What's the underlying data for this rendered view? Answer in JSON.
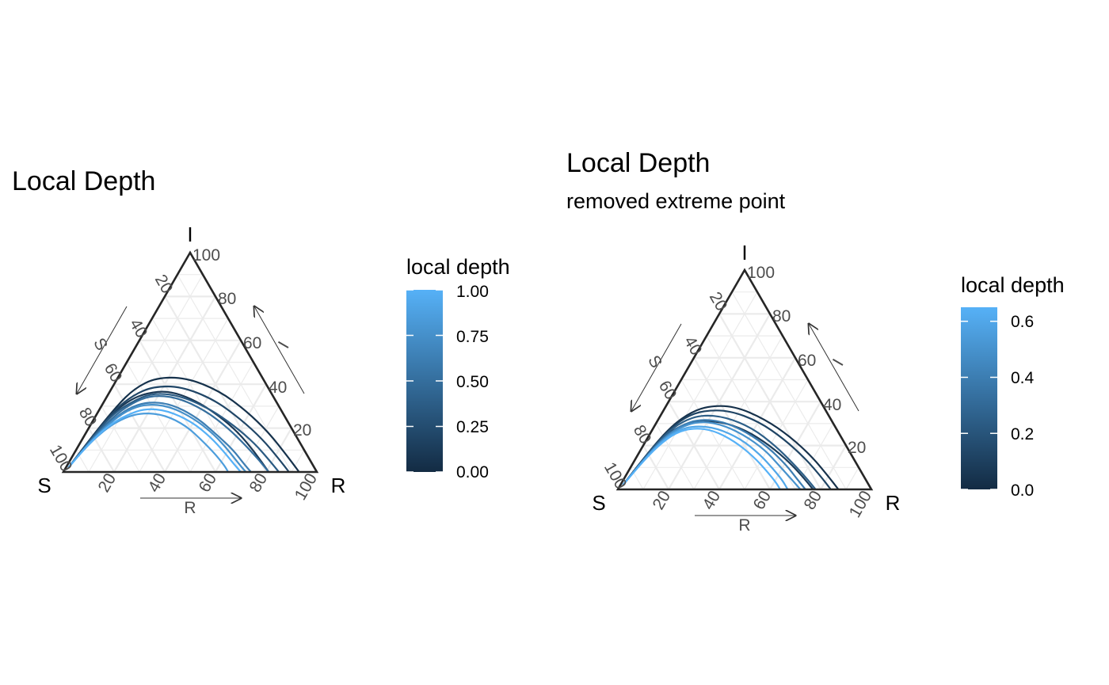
{
  "chart_data": [
    {
      "type": "ternary-line",
      "title": "Local Depth",
      "subtitle": "",
      "vertices": {
        "top": "I",
        "left": "S",
        "right": "R"
      },
      "axes": {
        "S": {
          "label": "S",
          "ticks": [
            "20",
            "40",
            "60",
            "80",
            "100"
          ]
        },
        "I": {
          "label": "I",
          "ticks": [
            "20",
            "40",
            "60",
            "80",
            "100"
          ]
        },
        "R": {
          "label": "R",
          "ticks": [
            "20",
            "40",
            "60",
            "80",
            "100"
          ]
        }
      },
      "grid": true,
      "legend": {
        "title": "local depth",
        "placement": "right",
        "range": [
          0,
          1
        ],
        "ticks": [
          "0.00",
          "0.25",
          "0.50",
          "0.75",
          "1.00"
        ],
        "tick_values": [
          0,
          0.25,
          0.5,
          0.75,
          1.0
        ]
      },
      "color_low": "#132B43",
      "color_high": "#56B1F7",
      "series": [
        {
          "depth": 0.05,
          "points": [
            [
              97,
              2,
              1
            ],
            [
              82,
              15,
              3
            ],
            [
              64,
              30,
              6
            ],
            [
              53,
              38,
              9
            ],
            [
              42,
              43,
              15
            ],
            [
              30,
              43,
              27
            ],
            [
              20,
              37,
              43
            ],
            [
              14,
              28,
              58
            ],
            [
              10,
              18,
              72
            ],
            [
              8,
              7,
              85
            ],
            [
              7,
              0,
              93
            ]
          ]
        },
        {
          "depth": 0.2,
          "points": [
            [
              97,
              2,
              1
            ],
            [
              83,
              14,
              3
            ],
            [
              66,
              28,
              6
            ],
            [
              55,
              35,
              10
            ],
            [
              45,
              39,
              16
            ],
            [
              34,
              39,
              27
            ],
            [
              24,
              33,
              43
            ],
            [
              18,
              24,
              58
            ],
            [
              14,
              15,
              71
            ],
            [
              12,
              6,
              82
            ],
            [
              11,
              0,
              89
            ]
          ]
        },
        {
          "depth": 0.35,
          "points": [
            [
              97,
              2,
              1
            ],
            [
              84,
              13,
              3
            ],
            [
              68,
              26,
              6
            ],
            [
              57,
              32,
              11
            ],
            [
              47,
              36,
              17
            ],
            [
              37,
              35,
              28
            ],
            [
              28,
              29,
              43
            ],
            [
              22,
              21,
              57
            ],
            [
              18,
              13,
              69
            ],
            [
              16,
              5,
              79
            ],
            [
              15,
              0,
              85
            ]
          ]
        },
        {
          "depth": 0.5,
          "points": [
            [
              97,
              2,
              1
            ],
            [
              84,
              13,
              3
            ],
            [
              68,
              25,
              7
            ],
            [
              58,
              31,
              11
            ],
            [
              48,
              35,
              17
            ],
            [
              38,
              34,
              28
            ],
            [
              30,
              28,
              42
            ],
            [
              25,
              20,
              55
            ],
            [
              22,
              12,
              66
            ],
            [
              20,
              5,
              75
            ],
            [
              19,
              0,
              81
            ]
          ]
        },
        {
          "depth": 0.62,
          "points": [
            [
              97,
              2,
              1
            ],
            [
              85,
              12,
              3
            ],
            [
              70,
              23,
              7
            ],
            [
              60,
              29,
              11
            ],
            [
              51,
              32,
              17
            ],
            [
              42,
              31,
              27
            ],
            [
              35,
              25,
              40
            ],
            [
              31,
              17,
              52
            ],
            [
              28,
              10,
              62
            ],
            [
              27,
              4,
              69
            ],
            [
              26,
              0,
              74
            ]
          ]
        },
        {
          "depth": 0.75,
          "points": [
            [
              97,
              2,
              1
            ],
            [
              85,
              12,
              3
            ],
            [
              71,
              22,
              7
            ],
            [
              61,
              28,
              11
            ],
            [
              52,
              31,
              17
            ],
            [
              43,
              30,
              27
            ],
            [
              36,
              24,
              40
            ],
            [
              32,
              17,
              51
            ],
            [
              30,
              10,
              60
            ],
            [
              29,
              4,
              67
            ],
            [
              28,
              0,
              72
            ]
          ]
        },
        {
          "depth": 0.85,
          "points": [
            [
              97,
              2,
              1
            ],
            [
              86,
              11,
              3
            ],
            [
              73,
              20,
              7
            ],
            [
              63,
              25,
              12
            ],
            [
              55,
              27,
              18
            ],
            [
              47,
              26,
              27
            ],
            [
              41,
              21,
              38
            ],
            [
              38,
              14,
              48
            ],
            [
              36,
              8,
              56
            ],
            [
              35,
              3,
              62
            ],
            [
              35,
              0,
              65
            ]
          ]
        },
        {
          "depth": 1.0,
          "points": [
            [
              97,
              2,
              1
            ],
            [
              86,
              11,
              3
            ],
            [
              72,
              21,
              7
            ],
            [
              62,
              26,
              12
            ],
            [
              53,
              29,
              18
            ],
            [
              45,
              28,
              27
            ],
            [
              38,
              23,
              39
            ],
            [
              34,
              16,
              50
            ],
            [
              32,
              9,
              59
            ],
            [
              31,
              4,
              65
            ],
            [
              30,
              0,
              70
            ]
          ]
        },
        {
          "depth": 0.1,
          "points": [
            [
              97,
              2,
              1
            ],
            [
              83,
              14,
              3
            ],
            [
              67,
              27,
              6
            ],
            [
              57,
              33,
              10
            ],
            [
              49,
              36,
              15
            ],
            [
              40,
              37,
              23
            ],
            [
              32,
              33,
              35
            ],
            [
              26,
              26,
              48
            ],
            [
              22,
              18,
              60
            ],
            [
              20,
              9,
              71
            ],
            [
              19,
              0,
              81
            ]
          ]
        }
      ]
    },
    {
      "type": "ternary-line",
      "title": "Local Depth",
      "subtitle": "removed extreme point",
      "vertices": {
        "top": "I",
        "left": "S",
        "right": "R"
      },
      "axes": {
        "S": {
          "label": "S",
          "ticks": [
            "20",
            "40",
            "60",
            "80",
            "100"
          ]
        },
        "I": {
          "label": "I",
          "ticks": [
            "20",
            "40",
            "60",
            "80",
            "100"
          ]
        },
        "R": {
          "label": "R",
          "ticks": [
            "20",
            "40",
            "60",
            "80",
            "100"
          ]
        }
      },
      "grid": true,
      "legend": {
        "title": "local depth",
        "placement": "right",
        "range": [
          0,
          0.65
        ],
        "ticks": [
          "0.0",
          "0.2",
          "0.4",
          "0.6"
        ],
        "tick_values": [
          0,
          0.2,
          0.4,
          0.6
        ]
      },
      "color_low": "#132B43",
      "color_high": "#56B1F7",
      "series": [
        {
          "depth": 0.03,
          "points": [
            [
              97,
              2,
              1
            ],
            [
              83,
              14,
              3
            ],
            [
              67,
              27,
              6
            ],
            [
              56,
              34,
              10
            ],
            [
              46,
              38,
              16
            ],
            [
              35,
              38,
              27
            ],
            [
              26,
              32,
              42
            ],
            [
              20,
              24,
              56
            ],
            [
              16,
              15,
              69
            ],
            [
              14,
              6,
              80
            ],
            [
              13,
              0,
              87
            ]
          ]
        },
        {
          "depth": 0.12,
          "points": [
            [
              97,
              2,
              1
            ],
            [
              83,
              14,
              3
            ],
            [
              68,
              26,
              6
            ],
            [
              57,
              33,
              10
            ],
            [
              48,
              36,
              16
            ],
            [
              38,
              36,
              26
            ],
            [
              29,
              31,
              40
            ],
            [
              23,
              23,
              54
            ],
            [
              19,
              14,
              67
            ],
            [
              17,
              6,
              77
            ],
            [
              16,
              0,
              84
            ]
          ]
        },
        {
          "depth": 0.25,
          "points": [
            [
              97,
              2,
              1
            ],
            [
              84,
              13,
              3
            ],
            [
              69,
              25,
              6
            ],
            [
              59,
              31,
              10
            ],
            [
              50,
              34,
              16
            ],
            [
              41,
              33,
              26
            ],
            [
              33,
              28,
              39
            ],
            [
              28,
              20,
              52
            ],
            [
              25,
              12,
              63
            ],
            [
              23,
              5,
              72
            ],
            [
              22,
              0,
              78
            ]
          ]
        },
        {
          "depth": 0.4,
          "points": [
            [
              97,
              2,
              1
            ],
            [
              85,
              12,
              3
            ],
            [
              71,
              23,
              6
            ],
            [
              61,
              29,
              10
            ],
            [
              52,
              32,
              16
            ],
            [
              43,
              31,
              26
            ],
            [
              36,
              26,
              38
            ],
            [
              31,
              19,
              50
            ],
            [
              28,
              11,
              61
            ],
            [
              27,
              5,
              68
            ],
            [
              26,
              0,
              74
            ]
          ]
        },
        {
          "depth": 0.5,
          "points": [
            [
              97,
              2,
              1
            ],
            [
              85,
              12,
              3
            ],
            [
              72,
              22,
              6
            ],
            [
              62,
              28,
              10
            ],
            [
              53,
              31,
              16
            ],
            [
              45,
              30,
              25
            ],
            [
              38,
              25,
              37
            ],
            [
              33,
              18,
              49
            ],
            [
              31,
              11,
              58
            ],
            [
              29,
              4,
              67
            ],
            [
              28,
              0,
              72
            ]
          ]
        },
        {
          "depth": 0.6,
          "points": [
            [
              97,
              2,
              1
            ],
            [
              86,
              11,
              3
            ],
            [
              73,
              21,
              6
            ],
            [
              63,
              27,
              10
            ],
            [
              55,
              29,
              16
            ],
            [
              47,
              28,
              25
            ],
            [
              40,
              23,
              37
            ],
            [
              36,
              16,
              48
            ],
            [
              34,
              9,
              57
            ],
            [
              33,
              4,
              63
            ],
            [
              33,
              0,
              67
            ]
          ]
        },
        {
          "depth": 0.65,
          "points": [
            [
              97,
              2,
              1
            ],
            [
              86,
              11,
              3
            ],
            [
              74,
              20,
              6
            ],
            [
              64,
              26,
              10
            ],
            [
              56,
              28,
              16
            ],
            [
              49,
              27,
              24
            ],
            [
              43,
              22,
              35
            ],
            [
              39,
              15,
              46
            ],
            [
              37,
              8,
              55
            ],
            [
              36,
              3,
              61
            ],
            [
              36,
              0,
              64
            ]
          ]
        },
        {
          "depth": 0.08,
          "points": [
            [
              97,
              2,
              1
            ],
            [
              84,
              13,
              3
            ],
            [
              70,
              24,
              6
            ],
            [
              61,
              29,
              10
            ],
            [
              53,
              31,
              16
            ],
            [
              44,
              31,
              25
            ],
            [
              36,
              27,
              37
            ],
            [
              30,
              20,
              50
            ],
            [
              26,
              12,
              62
            ],
            [
              24,
              5,
              71
            ],
            [
              23,
              0,
              77
            ]
          ]
        }
      ]
    }
  ]
}
